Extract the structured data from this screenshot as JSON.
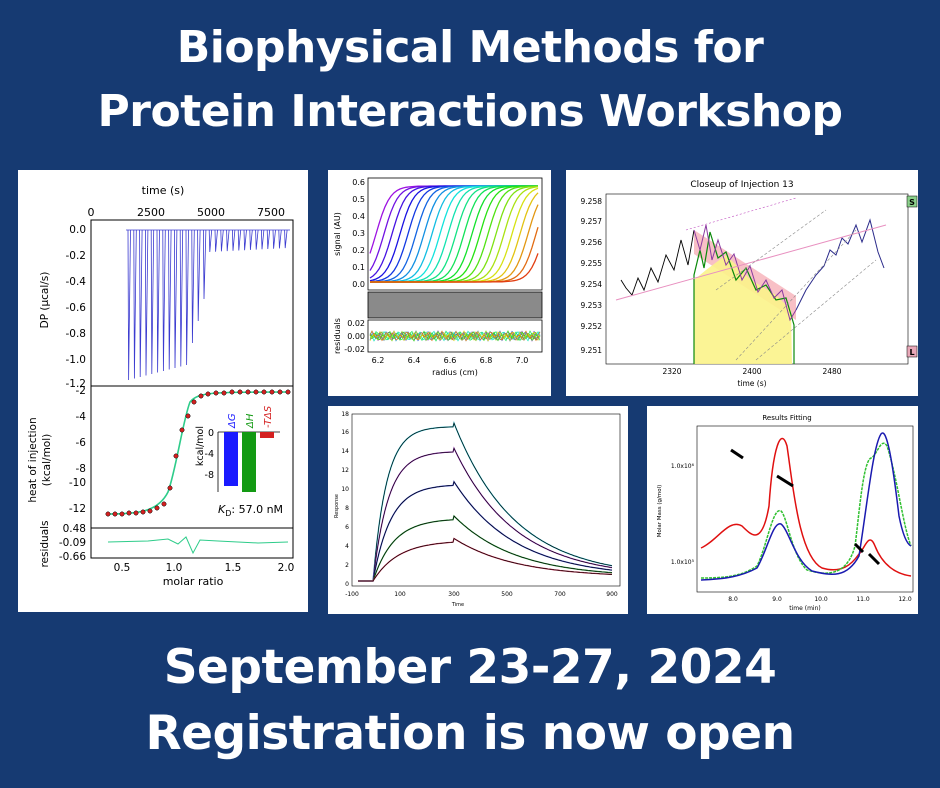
{
  "headline": {
    "line1": "Biophysical Methods for",
    "line2": "Protein Interactions Workshop"
  },
  "footer": {
    "dates": "September 23-27, 2024",
    "registration": "Registration is now open"
  },
  "itc": {
    "time_label": "time (s)",
    "time_ticks": [
      "0",
      "2500",
      "5000",
      "7500"
    ],
    "dp_label": "DP (µcal/s)",
    "dp_ticks": [
      "0.0",
      "-0.2",
      "-0.4",
      "-0.6",
      "-0.8",
      "-1.0",
      "-1.2"
    ],
    "heat_label1": "heat of injection",
    "heat_label2": "(kcal/mol)",
    "heat_ticks": [
      "-2",
      "-4",
      "-6",
      "-8",
      "-10",
      "-12"
    ],
    "resid_label": "residuals",
    "resid_ticks": [
      "0.48",
      "-0.09",
      "-0.66"
    ],
    "molar_label": "molar ratio",
    "molar_ticks": [
      "0.5",
      "1.0",
      "1.5",
      "2.0"
    ],
    "bar_unit": "kcal/mol",
    "bar_ticks": [
      "0",
      "-4",
      "-8"
    ],
    "bar_labels": {
      "dG": "ΔG",
      "dH": "ΔH",
      "TdS": "-TΔS"
    },
    "kd_prefix": "K",
    "kd_sub": "D",
    "kd_value": ": 57.0 nM",
    "colors": {
      "dG": "#1a1aff",
      "dH": "#139a13",
      "TdS": "#d42020",
      "fit": "#2ecc8a",
      "raw": "#3b3bd0"
    }
  },
  "auc": {
    "signal_label": "signal (AU)",
    "signal_ticks": [
      "0.6",
      "0.5",
      "0.4",
      "0.3",
      "0.2",
      "0.1",
      "0.0"
    ],
    "resid_label": "residuals",
    "resid_ticks": [
      "0.02",
      "0.00",
      "-0.02"
    ],
    "radius_label": "radius (cm)",
    "radius_ticks": [
      "6.2",
      "6.4",
      "6.6",
      "6.8",
      "7.0"
    ]
  },
  "closeup": {
    "title": "Closeup of Injection 13",
    "y_ticks": [
      "9.258",
      "9.257",
      "9.256",
      "9.255",
      "9.254",
      "9.253",
      "9.252",
      "9.251"
    ],
    "x_ticks": [
      "2320",
      "2400",
      "2480"
    ],
    "x_label": "time (s)",
    "marker_s": "S",
    "marker_l": "L"
  },
  "spr": {
    "y_label": "Response",
    "y_ticks": [
      "18",
      "16",
      "14",
      "12",
      "10",
      "8",
      "6",
      "4",
      "2",
      "0"
    ],
    "x_label": "Time",
    "x_ticks": [
      "-100",
      "100",
      "300",
      "500",
      "700",
      "900"
    ]
  },
  "mals": {
    "title": "Results Fitting",
    "y_label": "Molar Mass (g/mol)",
    "y_ticks": [
      "1.0x10⁶",
      "1.0x10⁵"
    ],
    "x_label": "time (min)",
    "x_ticks": [
      "8.0",
      "9.0",
      "10.0",
      "11.0",
      "12.0"
    ],
    "colors": {
      "red": "#e01010",
      "green": "#30c030",
      "blue": "#1a1ab0"
    }
  }
}
